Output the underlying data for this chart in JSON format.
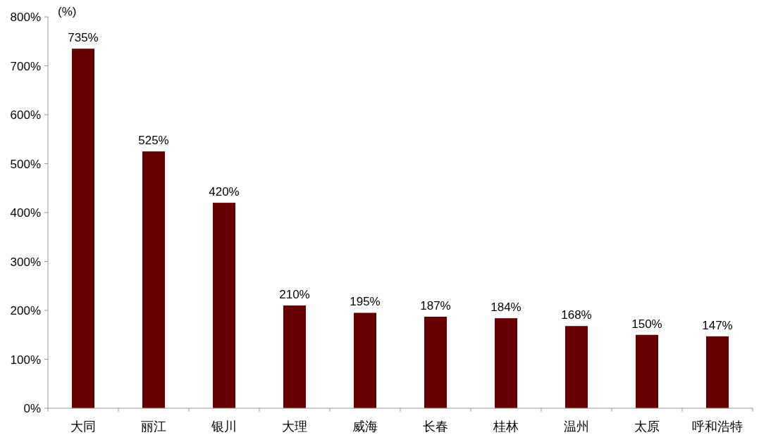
{
  "chart_data": {
    "type": "bar",
    "ylabel": "(%)",
    "categories": [
      "大同",
      "丽江",
      "银川",
      "大理",
      "威海",
      "长春",
      "桂林",
      "温州",
      "太原",
      "呼和浩特"
    ],
    "values": [
      735,
      525,
      420,
      210,
      195,
      187,
      184,
      168,
      150,
      147
    ],
    "value_labels": [
      "735%",
      "525%",
      "420%",
      "210%",
      "195%",
      "187%",
      "184%",
      "168%",
      "150%",
      "147%"
    ],
    "color": "#660000",
    "ylim": [
      0,
      800
    ],
    "yticks": [
      {
        "value": 0,
        "label": "0%"
      },
      {
        "value": 100,
        "label": "100%"
      },
      {
        "value": 200,
        "label": "200%"
      },
      {
        "value": 300,
        "label": "300%"
      },
      {
        "value": 400,
        "label": "400%"
      },
      {
        "value": 500,
        "label": "500%"
      },
      {
        "value": 600,
        "label": "600%"
      },
      {
        "value": 700,
        "label": "700%"
      },
      {
        "value": 800,
        "label": "800%"
      }
    ],
    "grid": false
  }
}
